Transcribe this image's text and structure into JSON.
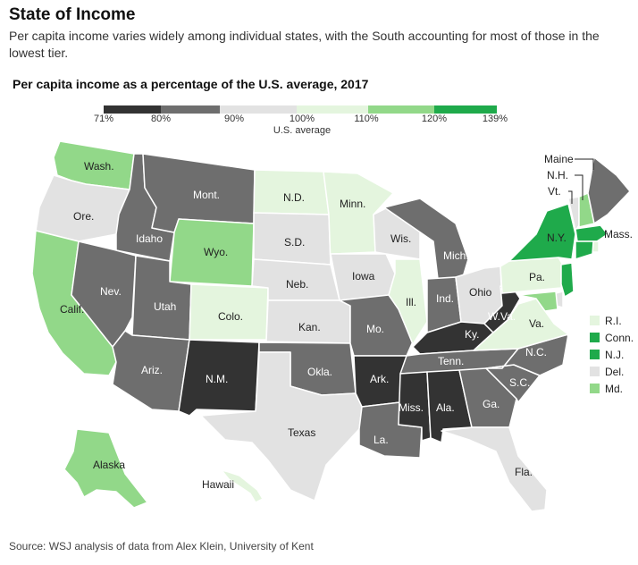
{
  "title": "State of Income",
  "subtitle": "Per capita income varies widely among individual states, with the South accounting for most of those in the lowest tier.",
  "chart_title": "Per capita income as a percentage of the U.S. average, 2017",
  "legend": {
    "ticks": [
      "71%",
      "80%",
      "90%",
      "100%",
      "110%",
      "120%",
      "139%"
    ],
    "sub_label": "U.S. average",
    "bins": [
      {
        "range": "71-80",
        "color": "#333333"
      },
      {
        "range": "80-90",
        "color": "#6e6e6e"
      },
      {
        "range": "90-100",
        "color": "#e2e2e2"
      },
      {
        "range": "100-110",
        "color": "#e4f5de"
      },
      {
        "range": "110-120",
        "color": "#92d889"
      },
      {
        "range": "120-139",
        "color": "#1faa4b"
      }
    ]
  },
  "small_states": [
    {
      "label": "R.I.",
      "color": "#e4f5de"
    },
    {
      "label": "Conn.",
      "color": "#1faa4b"
    },
    {
      "label": "N.J.",
      "color": "#1faa4b"
    },
    {
      "label": "Del.",
      "color": "#e2e2e2"
    },
    {
      "label": "Md.",
      "color": "#92d889"
    }
  ],
  "states": {
    "wa": {
      "label": "Wash.",
      "bin": "110-120"
    },
    "or": {
      "label": "Ore.",
      "bin": "90-100"
    },
    "ca": {
      "label": "Calif.",
      "bin": "110-120"
    },
    "id": {
      "label": "Idaho",
      "bin": "80-90"
    },
    "nv": {
      "label": "Nev.",
      "bin": "80-90"
    },
    "mt": {
      "label": "Mont.",
      "bin": "80-90"
    },
    "wy": {
      "label": "Wyo.",
      "bin": "110-120"
    },
    "ut": {
      "label": "Utah",
      "bin": "80-90"
    },
    "az": {
      "label": "Ariz.",
      "bin": "80-90"
    },
    "co": {
      "label": "Colo.",
      "bin": "100-110"
    },
    "nm": {
      "label": "N.M.",
      "bin": "71-80"
    },
    "nd": {
      "label": "N.D.",
      "bin": "100-110"
    },
    "sd": {
      "label": "S.D.",
      "bin": "90-100"
    },
    "ne": {
      "label": "Neb.",
      "bin": "90-100"
    },
    "ks": {
      "label": "Kan.",
      "bin": "90-100"
    },
    "ok": {
      "label": "Okla.",
      "bin": "80-90"
    },
    "tx": {
      "label": "Texas",
      "bin": "90-100"
    },
    "mn": {
      "label": "Minn.",
      "bin": "100-110"
    },
    "ia": {
      "label": "Iowa",
      "bin": "90-100"
    },
    "mo": {
      "label": "Mo.",
      "bin": "80-90"
    },
    "ar": {
      "label": "Ark.",
      "bin": "71-80"
    },
    "la": {
      "label": "La.",
      "bin": "80-90"
    },
    "wi": {
      "label": "Wis.",
      "bin": "90-100"
    },
    "il": {
      "label": "Ill.",
      "bin": "100-110"
    },
    "mi": {
      "label": "Mich.",
      "bin": "80-90"
    },
    "in": {
      "label": "Ind.",
      "bin": "80-90"
    },
    "oh": {
      "label": "Ohio",
      "bin": "90-100"
    },
    "ky": {
      "label": "Ky.",
      "bin": "71-80"
    },
    "tn": {
      "label": "Tenn.",
      "bin": "80-90"
    },
    "ms": {
      "label": "Miss.",
      "bin": "71-80"
    },
    "al": {
      "label": "Ala.",
      "bin": "71-80"
    },
    "ga": {
      "label": "Ga.",
      "bin": "80-90"
    },
    "fl": {
      "label": "Fla.",
      "bin": "90-100"
    },
    "sc": {
      "label": "S.C.",
      "bin": "80-90"
    },
    "nc": {
      "label": "N.C.",
      "bin": "80-90"
    },
    "va": {
      "label": "Va.",
      "bin": "100-110"
    },
    "wv": {
      "label": "W.Va.",
      "bin": "71-80"
    },
    "pa": {
      "label": "Pa.",
      "bin": "100-110"
    },
    "ny": {
      "label": "N.Y.",
      "bin": "120-139"
    },
    "vt": {
      "label": "Vt.",
      "bin": "90-100"
    },
    "nh": {
      "label": "N.H.",
      "bin": "110-120"
    },
    "me": {
      "label": "Maine",
      "bin": "80-90"
    },
    "ma": {
      "label": "Mass.",
      "bin": "120-139"
    },
    "ri": {
      "label": "",
      "bin": "100-110"
    },
    "ct": {
      "label": "",
      "bin": "120-139"
    },
    "nj": {
      "label": "",
      "bin": "120-139"
    },
    "de": {
      "label": "",
      "bin": "90-100"
    },
    "md": {
      "label": "",
      "bin": "110-120"
    },
    "ak": {
      "label": "Alaska",
      "bin": "110-120"
    },
    "hi": {
      "label": "Hawaii",
      "bin": "100-110"
    }
  },
  "source": "Source: WSJ analysis of data from Alex Klein, University of Kent"
}
